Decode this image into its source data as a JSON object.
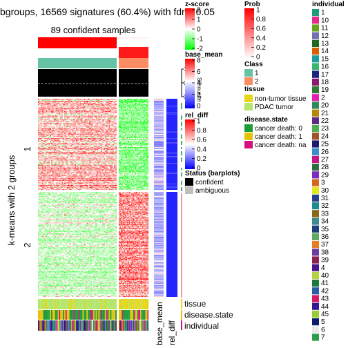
{
  "chart_data": {
    "type": "heatmap",
    "title": "bgroups, 16569 signatures (60.4%) with fdr < 0.05",
    "subtitle": "89 confident samples",
    "ylabel": "k-means with 2 groups",
    "row_groups": [
      {
        "label": "1",
        "rows": 130
      },
      {
        "label": "2",
        "rows": 160
      }
    ],
    "column_groups": [
      {
        "class": "1",
        "samples": 60
      },
      {
        "class": "2",
        "samples": 29
      }
    ],
    "top_annotations": [
      "Prob",
      "Class",
      "Silhouette score"
    ],
    "silhouette_label": "Silhouette\nscore",
    "silhouette_axis": {
      "ticks": [
        "0",
        "0.5",
        "1"
      ],
      "ylim": [
        0,
        1
      ],
      "cutoff": 0.5
    },
    "row_annotations": [
      {
        "name": "base_mean",
        "label": "base_mean"
      },
      {
        "name": "rel_diff",
        "label": "rel_diff"
      }
    ],
    "bottom_annotations": [
      "tissue",
      "disease.state",
      "individual"
    ],
    "legends": {
      "zscore": {
        "title": "z-score",
        "ticks": [
          {
            "label": "2",
            "value": 2
          },
          {
            "label": "1",
            "value": 1
          },
          {
            "label": "0",
            "value": 0
          },
          {
            "label": "-1",
            "value": -1
          },
          {
            "label": "-2",
            "value": -2
          }
        ],
        "colors": [
          "#ff0000",
          "#ffffff",
          "#00ff00"
        ]
      },
      "base_mean": {
        "title": "base_mean",
        "ticks": [
          {
            "label": "8",
            "value": 8
          },
          {
            "label": "6",
            "value": 6
          },
          {
            "label": "4",
            "value": 4
          },
          {
            "label": "2",
            "value": 2
          },
          {
            "label": "0",
            "value": 0
          }
        ],
        "colors": [
          "#ff0000",
          "#ffffff",
          "#0000ff"
        ]
      },
      "rel_diff": {
        "title": "rel_diff",
        "ticks": [
          {
            "label": "1",
            "value": 1
          },
          {
            "label": "0.8",
            "value": 0.8
          },
          {
            "label": "0.6",
            "value": 0.6
          },
          {
            "label": "0.4",
            "value": 0.4
          },
          {
            "label": "0.2",
            "value": 0.2
          },
          {
            "label": "0",
            "value": 0
          }
        ],
        "colors": [
          "#ff0000",
          "#ffffff",
          "#0000ff"
        ]
      },
      "status": {
        "title": "Status (barplots)",
        "items": [
          {
            "label": "confident",
            "color": "#000000"
          },
          {
            "label": "ambiguous",
            "color": "#bebebe"
          }
        ]
      },
      "prob": {
        "title": "Prob",
        "ticks": [
          {
            "label": "1",
            "value": 1
          },
          {
            "label": "0.8",
            "value": 0.8
          },
          {
            "label": "0.6",
            "value": 0.6
          },
          {
            "label": "0.4",
            "value": 0.4
          },
          {
            "label": "0.2",
            "value": 0.2
          },
          {
            "label": "0",
            "value": 0
          }
        ],
        "colors": [
          "#ffffff",
          "#ff0000"
        ]
      },
      "class": {
        "title": "Class",
        "items": [
          {
            "label": "1",
            "color": "#66c2a5"
          },
          {
            "label": "2",
            "color": "#fc8d62"
          }
        ]
      },
      "tissue": {
        "title": "tissue",
        "items": [
          {
            "label": "non-tumor tissue",
            "color": "#e6d616"
          },
          {
            "label": "PDAC tumor",
            "color": "#b3e66b"
          }
        ]
      },
      "disease_state": {
        "title": "disease.state",
        "items": [
          {
            "label": "cancer death: 0",
            "color": "#1b9e3a"
          },
          {
            "label": "cancer death: 1",
            "color": "#e6c30b"
          },
          {
            "label": "cancer death: na",
            "color": "#d4117e"
          }
        ]
      },
      "individual": {
        "title": "individual",
        "items": [
          {
            "label": "1",
            "color": "#1b9e77"
          },
          {
            "label": "10",
            "color": "#e7298a"
          },
          {
            "label": "11",
            "color": "#66a61e"
          },
          {
            "label": "12",
            "color": "#7570b3"
          },
          {
            "label": "13",
            "color": "#1e6b1e"
          },
          {
            "label": "14",
            "color": "#d95f02"
          },
          {
            "label": "15",
            "color": "#1b9e9e"
          },
          {
            "label": "16",
            "color": "#3cb371"
          },
          {
            "label": "17",
            "color": "#1a237e"
          },
          {
            "label": "18",
            "color": "#8b1a6b"
          },
          {
            "label": "19",
            "color": "#2e7d32"
          },
          {
            "label": "2",
            "color": "#e61eb4"
          },
          {
            "label": "20",
            "color": "#2e8b57"
          },
          {
            "label": "21",
            "color": "#b8860b"
          },
          {
            "label": "22",
            "color": "#5a2d82"
          },
          {
            "label": "23",
            "color": "#4caf50"
          },
          {
            "label": "24",
            "color": "#a0522d"
          },
          {
            "label": "25",
            "color": "#191970"
          },
          {
            "label": "26",
            "color": "#3a8ccc"
          },
          {
            "label": "27",
            "color": "#c71585"
          },
          {
            "label": "28",
            "color": "#2f6f3f"
          },
          {
            "label": "29",
            "color": "#7b2cbf"
          },
          {
            "label": "3",
            "color": "#d2691e"
          },
          {
            "label": "30",
            "color": "#e6e61e"
          },
          {
            "label": "31",
            "color": "#26418f"
          },
          {
            "label": "32",
            "color": "#1e8c8c"
          },
          {
            "label": "33",
            "color": "#8b6914"
          },
          {
            "label": "34",
            "color": "#3d8b8b"
          },
          {
            "label": "35",
            "color": "#1f3f7a"
          },
          {
            "label": "36",
            "color": "#5fa85f"
          },
          {
            "label": "37",
            "color": "#e67e22"
          },
          {
            "label": "38",
            "color": "#6b3fa0"
          },
          {
            "label": "39",
            "color": "#8b2252"
          },
          {
            "label": "4",
            "color": "#4a148c"
          },
          {
            "label": "40",
            "color": "#b5d33d"
          },
          {
            "label": "41",
            "color": "#1b7a3a"
          },
          {
            "label": "42",
            "color": "#2a5caa"
          },
          {
            "label": "43",
            "color": "#d81b60"
          },
          {
            "label": "44",
            "color": "#311b92"
          },
          {
            "label": "45",
            "color": "#9acd32"
          },
          {
            "label": "5",
            "color": "#0d1b6b"
          },
          {
            "label": "6",
            "color": "#e8e8e8"
          },
          {
            "label": "7",
            "color": "#2e9e4e"
          }
        ]
      }
    }
  }
}
